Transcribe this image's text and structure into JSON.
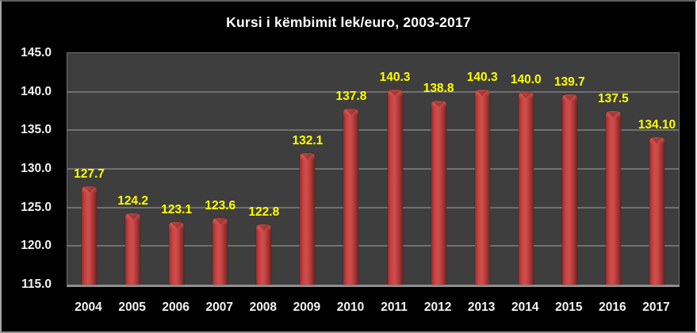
{
  "chart_data": {
    "type": "bar",
    "title": "Kursi i këmbimit lek/euro, 2003-2017",
    "categories": [
      "2004",
      "2005",
      "2006",
      "2007",
      "2008",
      "2009",
      "2010",
      "2011",
      "2012",
      "2013",
      "2014",
      "2015",
      "2016",
      "2017"
    ],
    "values": [
      127.7,
      124.2,
      123.1,
      123.6,
      122.8,
      132.1,
      137.8,
      140.3,
      138.8,
      140.3,
      140.0,
      139.7,
      137.5,
      134.1
    ],
    "value_labels": [
      "127.7",
      "124.2",
      "123.1",
      "123.6",
      "122.8",
      "132.1",
      "137.8",
      "140.3",
      "138.8",
      "140.3",
      "140.0",
      "139.7",
      "137.5",
      "134.10"
    ],
    "xlabel": "",
    "ylabel": "",
    "ylim": [
      115.0,
      145.0
    ],
    "ytick_step": 5.0,
    "ytick_labels": [
      "145.0",
      "140.0",
      "135.0",
      "130.0",
      "125.0",
      "120.0",
      "115.0"
    ],
    "grid": "horizontal",
    "legend": "none",
    "colors": {
      "background": "#010101",
      "plot_background": "#3e3e3e",
      "gridline": "#707070",
      "bar_fill": "#c64543",
      "bar_edge": "#6f2322",
      "value_label": "#ffff00",
      "axis_label": "#f3f3f3",
      "title": "#ffffff"
    }
  }
}
